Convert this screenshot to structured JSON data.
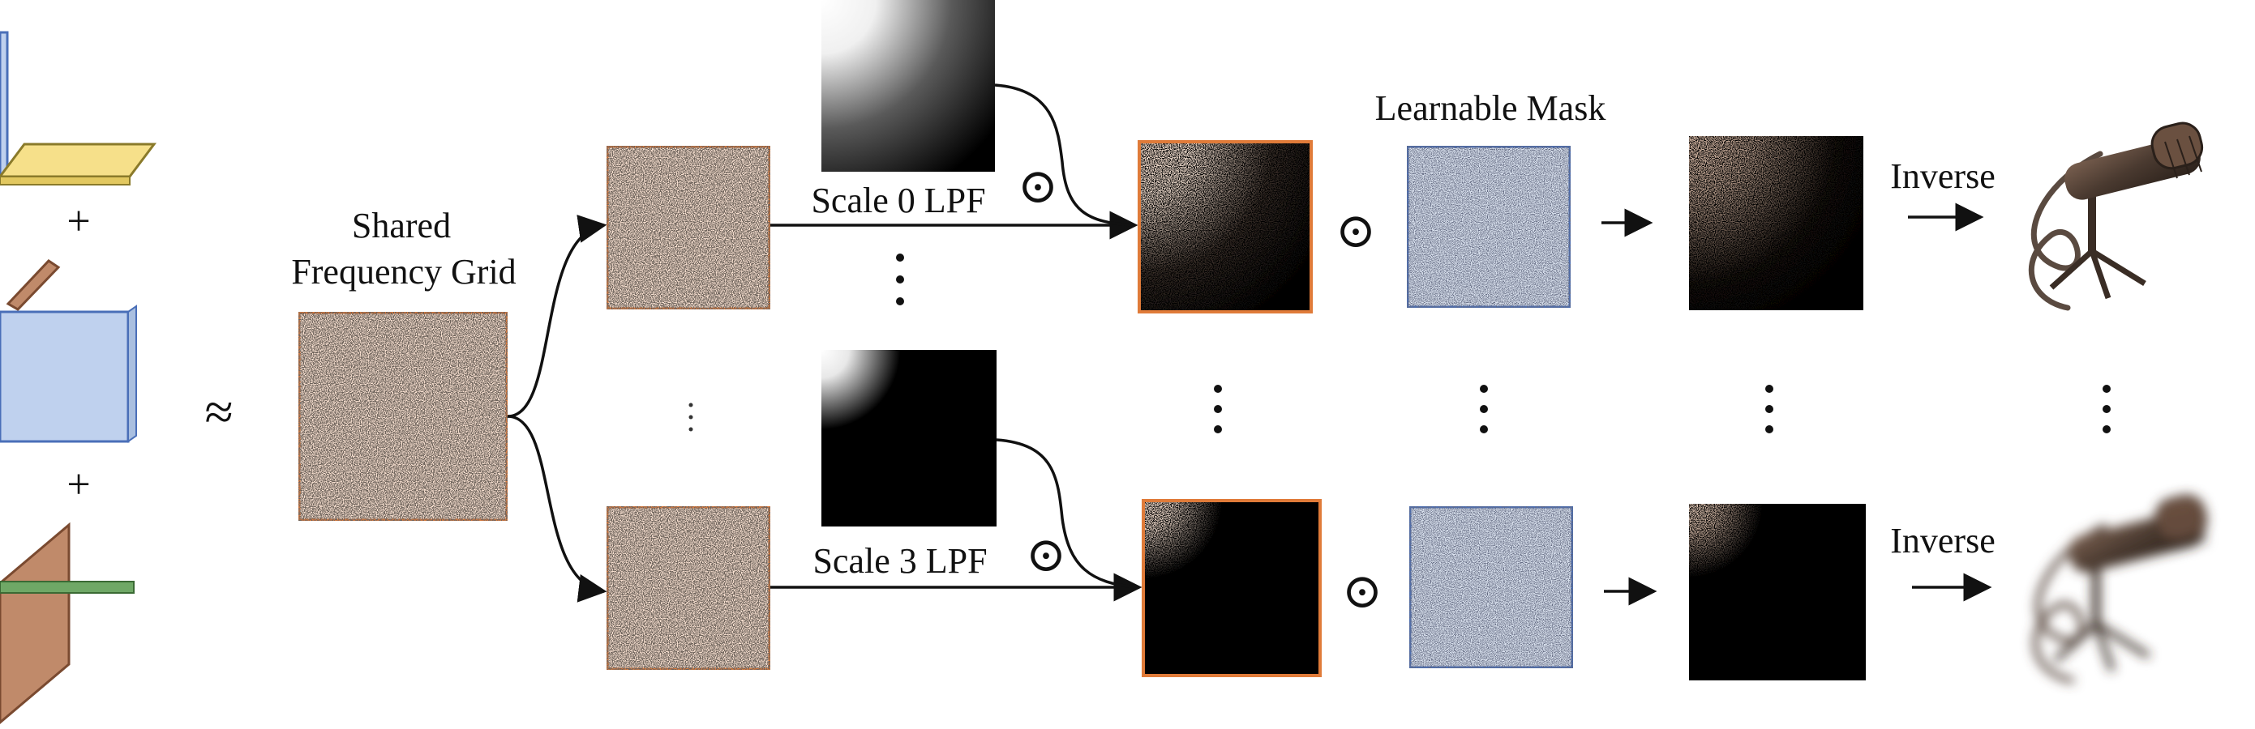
{
  "labels": {
    "plus": "+",
    "approx": "≈",
    "shared_grid_line1": "Shared",
    "shared_grid_line2": "Frequency Grid",
    "scale0_lpf": "Scale 0 LPF",
    "scale3_lpf": "Scale 3 LPF",
    "odot": "⊙",
    "learnable_mask": "Learnable Mask",
    "inverse": "Inverse"
  },
  "colors": {
    "orange_border": "#E07B39",
    "orange_fill": "#FBE3D3",
    "blue_border": "#4A6FB8",
    "blue_fill": "#DCE4F1",
    "plane_yellow": "#F6E08A",
    "plane_blue": "#BFD1EE",
    "plane_brown": "#C08A6A",
    "plane_green": "#6FA866",
    "mic_body": "#4a3a30"
  },
  "icons": [
    "mic-render",
    "mic-render-blurred",
    "triplane-xy",
    "triplane-xz",
    "triplane-yz"
  ]
}
